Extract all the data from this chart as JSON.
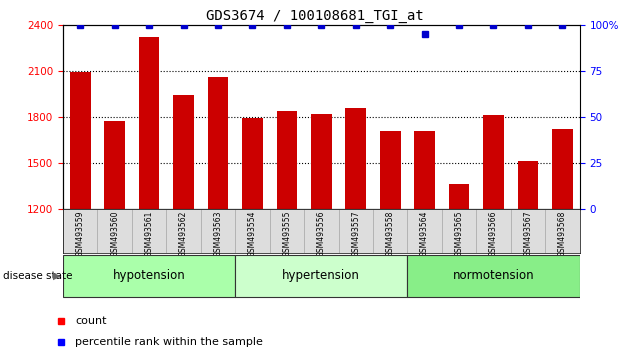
{
  "title": "GDS3674 / 100108681_TGI_at",
  "samples": [
    "GSM493559",
    "GSM493560",
    "GSM493561",
    "GSM493562",
    "GSM493563",
    "GSM493554",
    "GSM493555",
    "GSM493556",
    "GSM493557",
    "GSM493558",
    "GSM493564",
    "GSM493565",
    "GSM493566",
    "GSM493567",
    "GSM493568"
  ],
  "counts": [
    2090,
    1775,
    2320,
    1940,
    2060,
    1790,
    1840,
    1820,
    1860,
    1710,
    1710,
    1360,
    1810,
    1510,
    1720
  ],
  "percentiles": [
    100,
    100,
    100,
    100,
    100,
    100,
    100,
    100,
    100,
    100,
    95,
    100,
    100,
    100,
    100
  ],
  "groups": [
    {
      "label": "hypotension",
      "start": 0,
      "end": 5,
      "color": "#aaffaa"
    },
    {
      "label": "hypertension",
      "start": 5,
      "end": 10,
      "color": "#ccffcc"
    },
    {
      "label": "normotension",
      "start": 10,
      "end": 15,
      "color": "#88ee88"
    }
  ],
  "bar_color": "#cc0000",
  "percentile_color": "#0000cc",
  "ylim_left": [
    1200,
    2400
  ],
  "ylim_right": [
    0,
    100
  ],
  "yticks_left": [
    1200,
    1500,
    1800,
    2100,
    2400
  ],
  "yticks_right": [
    0,
    25,
    50,
    75,
    100
  ],
  "background_color": "#ffffff",
  "title_fontsize": 10,
  "tick_fontsize": 7.5,
  "bar_width": 0.6
}
